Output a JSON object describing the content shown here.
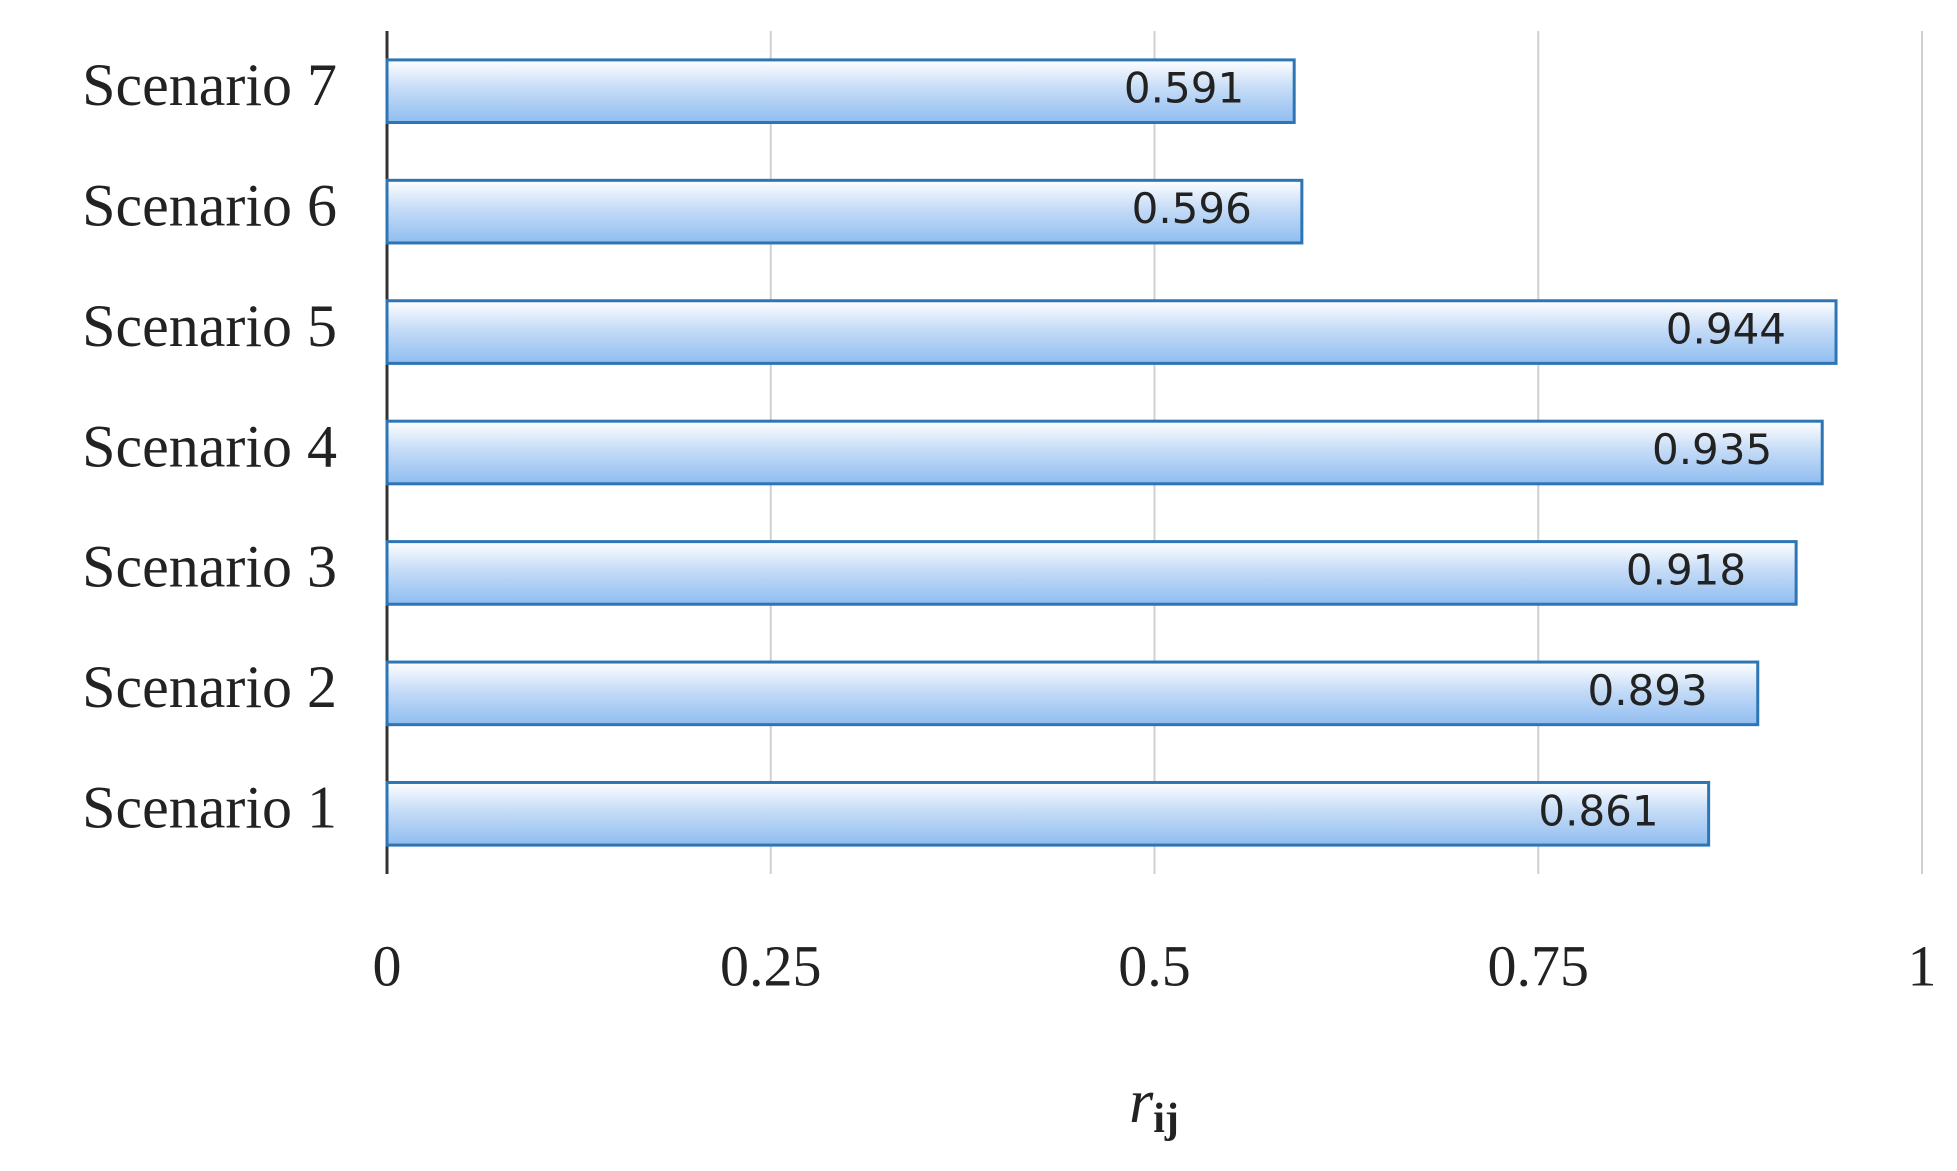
{
  "chart_data": {
    "type": "hbar",
    "categories": [
      "Scenario 1",
      "Scenario 2",
      "Scenario 3",
      "Scenario 4",
      "Scenario 5",
      "Scenario 6",
      "Scenario 7"
    ],
    "values": [
      0.861,
      0.893,
      0.918,
      0.935,
      0.944,
      0.596,
      0.591
    ],
    "x_label": {
      "base": "r",
      "subscript": "ij"
    },
    "xlim": [
      0,
      1
    ],
    "xticks": [
      0,
      0.25,
      0.5,
      0.75,
      1
    ],
    "color": "#2e75b6",
    "grid": true
  }
}
